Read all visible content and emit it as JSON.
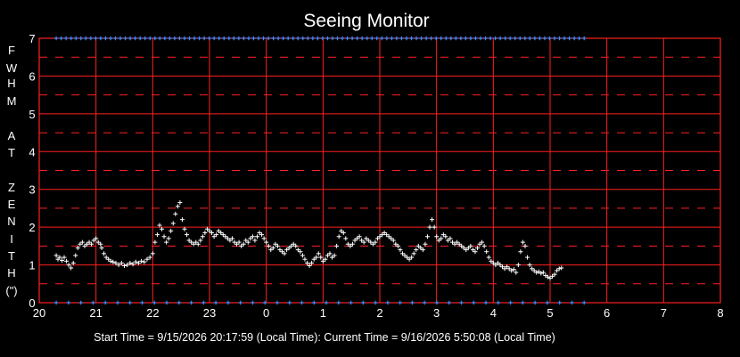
{
  "chart_data": {
    "type": "scatter",
    "title": "Seeing Monitor",
    "ylabel_letters": [
      "F",
      "W",
      "H",
      "M",
      "",
      "A",
      "T",
      "",
      "Z",
      "E",
      "N",
      "I",
      "T",
      "H",
      "(\")"
    ],
    "x_tick_labels": [
      "20",
      "21",
      "22",
      "23",
      "0",
      "1",
      "2",
      "3",
      "4",
      "5",
      "6",
      "7",
      "8"
    ],
    "y_tick_labels": [
      "0",
      "1",
      "2",
      "3",
      "4",
      "5",
      "6",
      "7"
    ],
    "xlim": [
      0,
      12
    ],
    "ylim": [
      0,
      7
    ],
    "grid": "major solid, half-unit dashed",
    "series": [
      {
        "color": "#ffffff",
        "marker": "+",
        "points": [
          [
            0.3,
            1.25
          ],
          [
            0.33,
            1.15
          ],
          [
            0.36,
            1.2
          ],
          [
            0.4,
            1.12
          ],
          [
            0.44,
            1.2
          ],
          [
            0.48,
            1.1
          ],
          [
            0.52,
            1.0
          ],
          [
            0.56,
            0.92
          ],
          [
            0.6,
            1.05
          ],
          [
            0.64,
            1.25
          ],
          [
            0.68,
            1.45
          ],
          [
            0.72,
            1.55
          ],
          [
            0.76,
            1.6
          ],
          [
            0.8,
            1.5
          ],
          [
            0.84,
            1.55
          ],
          [
            0.88,
            1.6
          ],
          [
            0.92,
            1.55
          ],
          [
            0.96,
            1.65
          ],
          [
            1.0,
            1.7
          ],
          [
            1.04,
            1.6
          ],
          [
            1.08,
            1.55
          ],
          [
            1.1,
            1.45
          ],
          [
            1.14,
            1.3
          ],
          [
            1.18,
            1.2
          ],
          [
            1.22,
            1.15
          ],
          [
            1.26,
            1.1
          ],
          [
            1.3,
            1.08
          ],
          [
            1.35,
            1.05
          ],
          [
            1.4,
            1.0
          ],
          [
            1.45,
            1.05
          ],
          [
            1.5,
            0.98
          ],
          [
            1.55,
            1.0
          ],
          [
            1.6,
            1.05
          ],
          [
            1.65,
            1.02
          ],
          [
            1.7,
            1.08
          ],
          [
            1.75,
            1.05
          ],
          [
            1.8,
            1.1
          ],
          [
            1.85,
            1.08
          ],
          [
            1.9,
            1.15
          ],
          [
            1.95,
            1.2
          ],
          [
            2.0,
            1.3
          ],
          [
            2.04,
            1.6
          ],
          [
            2.08,
            1.8
          ],
          [
            2.12,
            2.05
          ],
          [
            2.16,
            1.95
          ],
          [
            2.2,
            1.75
          ],
          [
            2.24,
            1.6
          ],
          [
            2.28,
            1.7
          ],
          [
            2.32,
            1.9
          ],
          [
            2.36,
            2.1
          ],
          [
            2.4,
            2.35
          ],
          [
            2.44,
            2.55
          ],
          [
            2.48,
            2.65
          ],
          [
            2.52,
            2.2
          ],
          [
            2.56,
            1.95
          ],
          [
            2.6,
            1.8
          ],
          [
            2.64,
            1.65
          ],
          [
            2.68,
            1.6
          ],
          [
            2.72,
            1.55
          ],
          [
            2.76,
            1.6
          ],
          [
            2.8,
            1.55
          ],
          [
            2.84,
            1.65
          ],
          [
            2.88,
            1.75
          ],
          [
            2.92,
            1.85
          ],
          [
            2.96,
            1.95
          ],
          [
            3.0,
            1.9
          ],
          [
            3.04,
            1.85
          ],
          [
            3.08,
            1.75
          ],
          [
            3.12,
            1.8
          ],
          [
            3.16,
            1.9
          ],
          [
            3.2,
            1.85
          ],
          [
            3.24,
            1.8
          ],
          [
            3.28,
            1.75
          ],
          [
            3.32,
            1.7
          ],
          [
            3.36,
            1.65
          ],
          [
            3.4,
            1.7
          ],
          [
            3.44,
            1.6
          ],
          [
            3.48,
            1.55
          ],
          [
            3.52,
            1.6
          ],
          [
            3.56,
            1.5
          ],
          [
            3.6,
            1.55
          ],
          [
            3.64,
            1.65
          ],
          [
            3.68,
            1.6
          ],
          [
            3.72,
            1.7
          ],
          [
            3.76,
            1.75
          ],
          [
            3.8,
            1.65
          ],
          [
            3.84,
            1.75
          ],
          [
            3.88,
            1.85
          ],
          [
            3.92,
            1.8
          ],
          [
            3.96,
            1.7
          ],
          [
            4.0,
            1.6
          ],
          [
            4.04,
            1.5
          ],
          [
            4.08,
            1.4
          ],
          [
            4.12,
            1.45
          ],
          [
            4.16,
            1.55
          ],
          [
            4.2,
            1.5
          ],
          [
            4.24,
            1.4
          ],
          [
            4.28,
            1.35
          ],
          [
            4.32,
            1.3
          ],
          [
            4.36,
            1.4
          ],
          [
            4.4,
            1.45
          ],
          [
            4.44,
            1.5
          ],
          [
            4.48,
            1.55
          ],
          [
            4.52,
            1.5
          ],
          [
            4.56,
            1.4
          ],
          [
            4.6,
            1.35
          ],
          [
            4.64,
            1.25
          ],
          [
            4.68,
            1.15
          ],
          [
            4.72,
            1.05
          ],
          [
            4.76,
            0.98
          ],
          [
            4.8,
            1.05
          ],
          [
            4.84,
            1.15
          ],
          [
            4.88,
            1.2
          ],
          [
            4.92,
            1.3
          ],
          [
            4.96,
            1.2
          ],
          [
            5.0,
            1.1
          ],
          [
            5.04,
            1.15
          ],
          [
            5.08,
            1.25
          ],
          [
            5.12,
            1.3
          ],
          [
            5.16,
            1.2
          ],
          [
            5.2,
            1.25
          ],
          [
            5.24,
            1.5
          ],
          [
            5.28,
            1.75
          ],
          [
            5.32,
            1.9
          ],
          [
            5.36,
            1.85
          ],
          [
            5.4,
            1.7
          ],
          [
            5.44,
            1.55
          ],
          [
            5.48,
            1.5
          ],
          [
            5.52,
            1.55
          ],
          [
            5.56,
            1.65
          ],
          [
            5.6,
            1.7
          ],
          [
            5.64,
            1.75
          ],
          [
            5.68,
            1.65
          ],
          [
            5.72,
            1.6
          ],
          [
            5.76,
            1.7
          ],
          [
            5.8,
            1.65
          ],
          [
            5.84,
            1.6
          ],
          [
            5.88,
            1.55
          ],
          [
            5.92,
            1.6
          ],
          [
            5.96,
            1.7
          ],
          [
            6.0,
            1.75
          ],
          [
            6.04,
            1.8
          ],
          [
            6.08,
            1.85
          ],
          [
            6.12,
            1.8
          ],
          [
            6.16,
            1.75
          ],
          [
            6.2,
            1.7
          ],
          [
            6.24,
            1.65
          ],
          [
            6.28,
            1.55
          ],
          [
            6.32,
            1.5
          ],
          [
            6.36,
            1.4
          ],
          [
            6.4,
            1.3
          ],
          [
            6.44,
            1.25
          ],
          [
            6.48,
            1.2
          ],
          [
            6.52,
            1.15
          ],
          [
            6.56,
            1.2
          ],
          [
            6.6,
            1.3
          ],
          [
            6.64,
            1.4
          ],
          [
            6.68,
            1.5
          ],
          [
            6.72,
            1.45
          ],
          [
            6.76,
            1.4
          ],
          [
            6.8,
            1.55
          ],
          [
            6.84,
            1.75
          ],
          [
            6.88,
            2.0
          ],
          [
            6.92,
            2.2
          ],
          [
            6.96,
            2.0
          ],
          [
            7.0,
            1.75
          ],
          [
            7.04,
            1.65
          ],
          [
            7.08,
            1.7
          ],
          [
            7.12,
            1.8
          ],
          [
            7.16,
            1.75
          ],
          [
            7.2,
            1.65
          ],
          [
            7.24,
            1.7
          ],
          [
            7.28,
            1.6
          ],
          [
            7.32,
            1.55
          ],
          [
            7.36,
            1.6
          ],
          [
            7.4,
            1.55
          ],
          [
            7.44,
            1.5
          ],
          [
            7.48,
            1.45
          ],
          [
            7.52,
            1.4
          ],
          [
            7.56,
            1.45
          ],
          [
            7.6,
            1.5
          ],
          [
            7.64,
            1.4
          ],
          [
            7.68,
            1.35
          ],
          [
            7.72,
            1.45
          ],
          [
            7.76,
            1.55
          ],
          [
            7.8,
            1.6
          ],
          [
            7.84,
            1.5
          ],
          [
            7.88,
            1.35
          ],
          [
            7.92,
            1.2
          ],
          [
            7.96,
            1.1
          ],
          [
            8.0,
            1.05
          ],
          [
            8.04,
            1.0
          ],
          [
            8.08,
            1.05
          ],
          [
            8.12,
            1.0
          ],
          [
            8.16,
            0.95
          ],
          [
            8.2,
            0.9
          ],
          [
            8.24,
            0.95
          ],
          [
            8.28,
            0.9
          ],
          [
            8.32,
            0.85
          ],
          [
            8.36,
            0.88
          ],
          [
            8.4,
            0.8
          ],
          [
            8.44,
            1.0
          ],
          [
            8.48,
            1.35
          ],
          [
            8.52,
            1.6
          ],
          [
            8.56,
            1.5
          ],
          [
            8.6,
            1.2
          ],
          [
            8.64,
            1.0
          ],
          [
            8.68,
            0.9
          ],
          [
            8.72,
            0.85
          ],
          [
            8.76,
            0.8
          ],
          [
            8.8,
            0.82
          ],
          [
            8.84,
            0.78
          ],
          [
            8.88,
            0.8
          ],
          [
            8.92,
            0.72
          ],
          [
            8.96,
            0.68
          ],
          [
            9.0,
            0.65
          ],
          [
            9.04,
            0.7
          ],
          [
            9.08,
            0.75
          ],
          [
            9.12,
            0.85
          ],
          [
            9.16,
            0.9
          ],
          [
            9.2,
            0.92
          ]
        ]
      },
      {
        "color": "#3a8cff",
        "marker": "+",
        "x_start": 0.3,
        "x_end": 9.6,
        "count": 108,
        "y": 7
      },
      {
        "color": "#3a8cff",
        "marker": "+",
        "x_start": 0.3,
        "x_end": 9.6,
        "count": 44,
        "y": 0
      }
    ]
  },
  "footer": {
    "start_label": "Start Time = 9/15/2026 20:17:59 (Local Time):  Current Time = 9/16/2026 5:50:08 (Local Time)"
  }
}
